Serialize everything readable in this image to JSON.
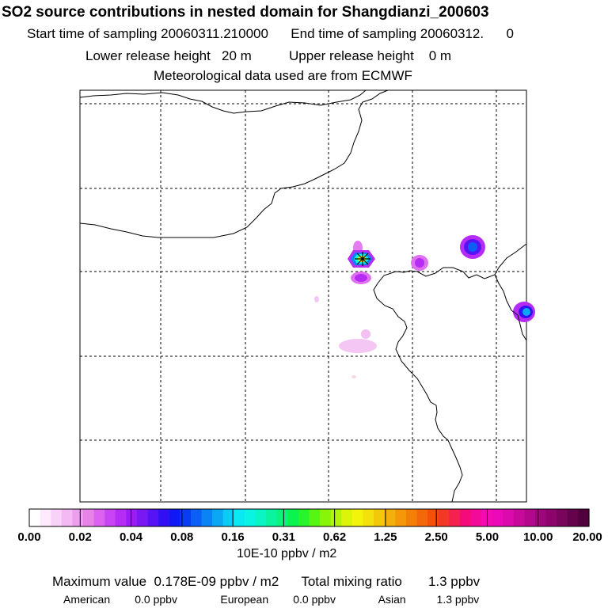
{
  "header": {
    "title": "SO2 source contributions in nested domain for Shangdianzi_200603",
    "line1": "Start time of sampling 20060311.210000      End time of sampling 20060312.      0",
    "line2": "Lower release height   20 m          Upper release height    0 m",
    "line3": "Meteorological data used are from ECMWF"
  },
  "colorbar": {
    "colors": [
      "#ffffff",
      "#fdeafd",
      "#f9d2f9",
      "#f4b9f4",
      "#ee9eee",
      "#e884e8",
      "#dc63f0",
      "#c844f4",
      "#b52cf4",
      "#9c1cf4",
      "#7a18f4",
      "#5614f4",
      "#3210f4",
      "#1018f4",
      "#0a3cf4",
      "#0a60f4",
      "#0a84f4",
      "#0aa8f4",
      "#0accf4",
      "#0ae8f4",
      "#0af4e4",
      "#0af4c4",
      "#0af4a0",
      "#0af47c",
      "#0af450",
      "#28f42c",
      "#58f414",
      "#88f40a",
      "#b4f40a",
      "#dcf40a",
      "#f4f40a",
      "#f4e00a",
      "#f4c80a",
      "#f4b00a",
      "#f4980a",
      "#f4800a",
      "#f4680a",
      "#f4500a",
      "#f43828",
      "#f42050",
      "#f40a78",
      "#f40a98",
      "#f40ab4",
      "#ec0ab8",
      "#dc0aac",
      "#c80a9c",
      "#b4088c",
      "#a0067c",
      "#8c046c",
      "#78045c",
      "#64024c",
      "#50003c"
    ],
    "tick_labels": [
      "0.00",
      "0.02",
      "0.04",
      "0.08",
      "0.16",
      "0.31",
      "0.62",
      "1.25",
      "2.50",
      "5.00",
      "10.00",
      "20.00"
    ],
    "units": "10E-10 ppbv / m2"
  },
  "footer": {
    "max_line": "Maximum value  0.178E-09 ppbv / m2      Total mixing ratio       1.3 ppbv",
    "region_line": "American        0.0 ppbv              European        0.0 ppbv              Asian          1.3 ppbv"
  },
  "chart_data": {
    "type": "heatmap",
    "title": "SO2 source contributions in nested domain for Shangdianzi_200603",
    "colorbar_label": "10E-10 ppbv / m2",
    "colorbar_levels": [
      0.0,
      0.02,
      0.04,
      0.08,
      0.16,
      0.31,
      0.62,
      1.25,
      2.5,
      5.0,
      10.0,
      20.0
    ],
    "max_value": "0.178E-09 ppbv / m2",
    "total_mixing_ratio_ppbv": 1.3,
    "region_contributions_ppbv": {
      "American": 0.0,
      "European": 0.0,
      "Asian": 1.3
    },
    "gridlines": "dashed",
    "receptor": "Shangdianzi"
  }
}
